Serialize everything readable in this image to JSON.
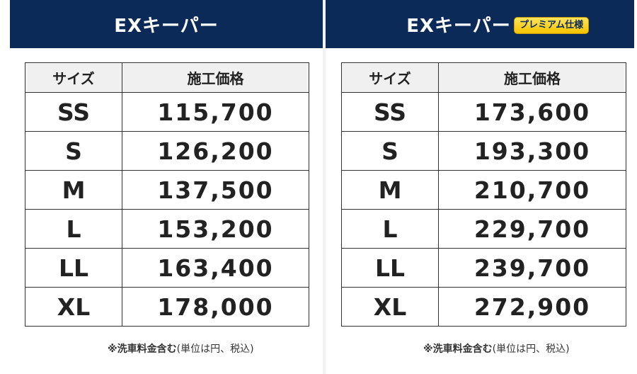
{
  "left_panel": {
    "title": "EXキーパー",
    "header_size": "サイズ",
    "header_price": "施工価格",
    "rows": [
      {
        "size": "SS",
        "price": "115,700"
      },
      {
        "size": "S",
        "price": "126,200"
      },
      {
        "size": "M",
        "price": "137,500"
      },
      {
        "size": "L",
        "price": "153,200"
      },
      {
        "size": "LL",
        "price": "163,400"
      },
      {
        "size": "XL",
        "price": "178,000"
      }
    ],
    "note_bold": "※洗車料金含む",
    "note_rest": "(単位は円、税込)"
  },
  "right_panel": {
    "title": "EXキーパー",
    "badge": "プレミアム仕様",
    "header_size": "サイズ",
    "header_price": "施工価格",
    "rows": [
      {
        "size": "SS",
        "price": "173,600"
      },
      {
        "size": "S",
        "price": "193,300"
      },
      {
        "size": "M",
        "price": "210,700"
      },
      {
        "size": "L",
        "price": "229,700"
      },
      {
        "size": "LL",
        "price": "239,700"
      },
      {
        "size": "XL",
        "price": "272,900"
      }
    ],
    "note_bold": "※洗車料金含む",
    "note_rest": "(単位は円、税込)"
  },
  "colors": {
    "header_bg": "#0b2a57",
    "badge_bg": "#f4c400"
  }
}
